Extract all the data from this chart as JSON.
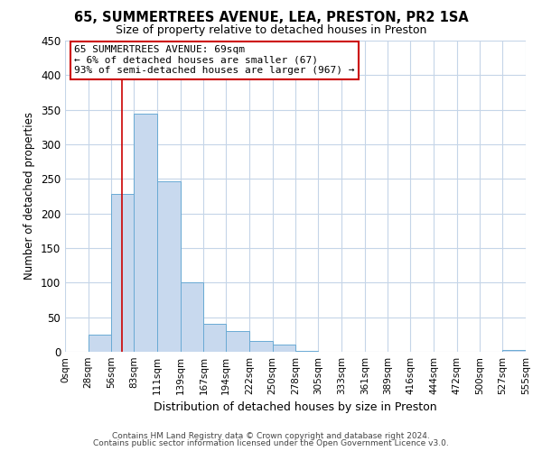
{
  "title": "65, SUMMERTREES AVENUE, LEA, PRESTON, PR2 1SA",
  "subtitle": "Size of property relative to detached houses in Preston",
  "xlabel": "Distribution of detached houses by size in Preston",
  "ylabel": "Number of detached properties",
  "bar_color": "#c8d9ee",
  "bar_edge_color": "#6aaad4",
  "bin_edges": [
    0,
    28,
    56,
    83,
    111,
    139,
    167,
    194,
    222,
    250,
    278,
    305,
    333,
    361,
    389,
    416,
    444,
    472,
    500,
    527,
    555
  ],
  "bin_labels": [
    "0sqm",
    "28sqm",
    "56sqm",
    "83sqm",
    "111sqm",
    "139sqm",
    "167sqm",
    "194sqm",
    "222sqm",
    "250sqm",
    "278sqm",
    "305sqm",
    "333sqm",
    "361sqm",
    "389sqm",
    "416sqm",
    "444sqm",
    "472sqm",
    "500sqm",
    "527sqm",
    "555sqm"
  ],
  "bar_heights": [
    0,
    25,
    228,
    345,
    246,
    101,
    41,
    30,
    16,
    10,
    1,
    0,
    0,
    0,
    0,
    0,
    0,
    0,
    0,
    2
  ],
  "ylim": [
    0,
    450
  ],
  "yticks": [
    0,
    50,
    100,
    150,
    200,
    250,
    300,
    350,
    400,
    450
  ],
  "property_line_x": 69,
  "annotation_title": "65 SUMMERTREES AVENUE: 69sqm",
  "annotation_line1": "← 6% of detached houses are smaller (67)",
  "annotation_line2": "93% of semi-detached houses are larger (967) →",
  "annotation_box_color": "#ffffff",
  "annotation_box_edge": "#cc0000",
  "vline_color": "#cc0000",
  "footer1": "Contains HM Land Registry data © Crown copyright and database right 2024.",
  "footer2": "Contains public sector information licensed under the Open Government Licence v3.0.",
  "background_color": "#ffffff",
  "grid_color": "#c5d5e8"
}
